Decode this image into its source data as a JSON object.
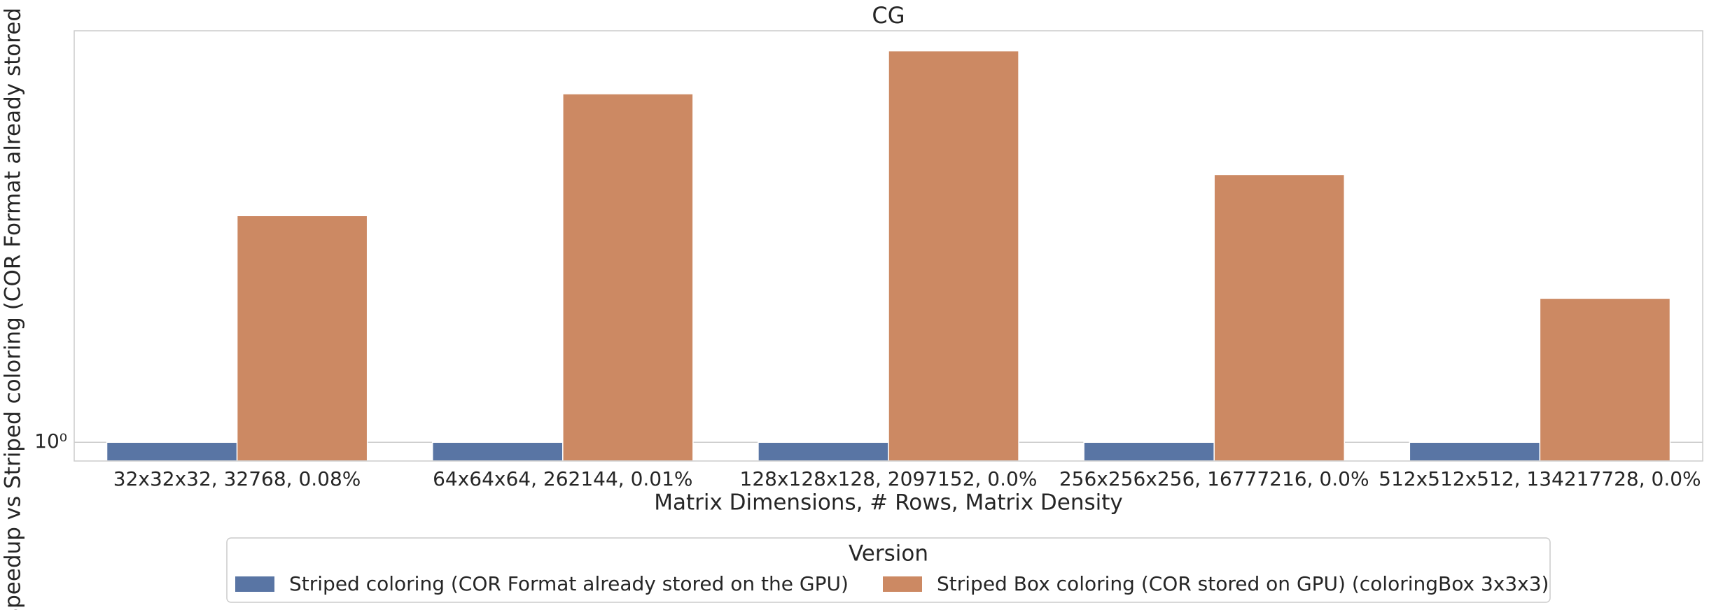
{
  "chart_data": {
    "type": "bar",
    "title": "CG",
    "x_label": "Matrix Dimensions, # Rows, Matrix Density",
    "y_label": "Speedup vs Striped coloring (COR Format already stored on the GPU)",
    "categories": [
      "32x32x32, 32768, 0.08%",
      "64x64x64, 262144, 0.01%",
      "128x128x128, 2097152, 0.0%",
      "256x256x256, 16777216, 0.0%",
      "512x512x512, 134217728, 0.0%"
    ],
    "series": [
      {
        "name": "Striped coloring (COR Format already stored on the GPU)",
        "color": "#5975a4",
        "values": [
          1,
          1,
          1,
          1,
          1
        ]
      },
      {
        "name": "Striped Box coloring (COR stored on GPU) (coloringBox 3x3x3)",
        "color": "#cc8963",
        "values": [
          1.66,
          2.18,
          2.4,
          1.82,
          1.38
        ]
      }
    ],
    "y_scale": "log",
    "ylim": [
      0.959,
      2.51
    ],
    "yticks": [
      {
        "value": 1,
        "label": "10⁰"
      }
    ],
    "grid": true,
    "legend_title": "Version",
    "legend_position": "below"
  }
}
